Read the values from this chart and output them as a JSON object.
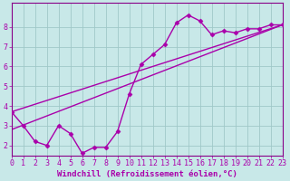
{
  "line1_x": [
    0,
    1,
    2,
    3,
    4,
    5,
    6,
    7,
    8,
    9,
    10,
    11,
    12,
    13,
    14,
    15,
    16,
    17,
    18,
    19,
    20,
    21,
    22,
    23
  ],
  "line1_y": [
    3.7,
    3.0,
    2.2,
    2.0,
    3.0,
    2.6,
    1.6,
    1.9,
    1.9,
    2.7,
    4.6,
    6.1,
    6.6,
    7.1,
    8.2,
    8.6,
    8.3,
    7.6,
    7.8,
    7.7,
    7.9,
    7.9,
    8.1,
    8.1
  ],
  "line2_x": [
    0,
    23
  ],
  "line2_y": [
    2.8,
    8.1
  ],
  "line3_x": [
    0,
    23
  ],
  "line3_y": [
    3.7,
    8.1
  ],
  "line_color": "#aa00aa",
  "marker": "D",
  "markersize": 2.5,
  "linewidth": 1.0,
  "bg_color": "#c8e8e8",
  "grid_color": "#a0c8c8",
  "xlim": [
    0,
    23
  ],
  "ylim": [
    1.5,
    9.2
  ],
  "yticks": [
    2,
    3,
    4,
    5,
    6,
    7,
    8
  ],
  "xticks": [
    0,
    1,
    2,
    3,
    4,
    5,
    6,
    7,
    8,
    9,
    10,
    11,
    12,
    13,
    14,
    15,
    16,
    17,
    18,
    19,
    20,
    21,
    22,
    23
  ],
  "xlabel": "Windchill (Refroidissement éolien,°C)",
  "xlabel_fontsize": 6.5,
  "tick_fontsize": 6.0,
  "tick_color": "#aa00aa",
  "axis_color": "#880088"
}
